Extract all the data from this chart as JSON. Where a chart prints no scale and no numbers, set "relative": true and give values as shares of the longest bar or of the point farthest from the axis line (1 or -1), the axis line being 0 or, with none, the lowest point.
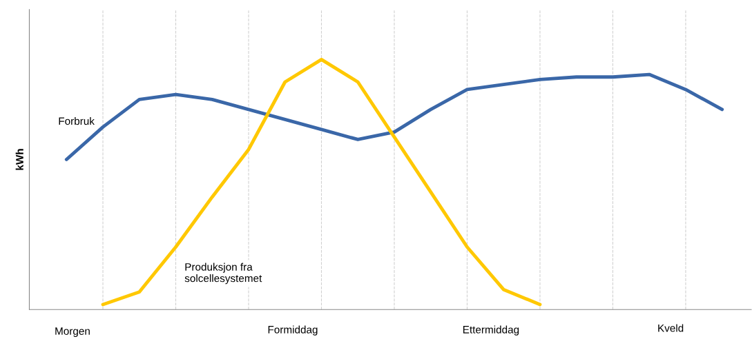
{
  "chart_data": {
    "type": "line",
    "relative": true,
    "ylabel": "kWh",
    "categories": [
      null,
      null,
      null,
      null,
      null,
      null,
      null,
      null,
      null,
      null,
      null,
      null,
      null,
      null,
      null,
      null,
      null,
      null,
      null
    ],
    "series": [
      {
        "name": "Forbruk",
        "color": "#3a67a8",
        "values": [
          0.6,
          0.73,
          0.84,
          0.86,
          0.84,
          0.8,
          0.76,
          0.72,
          0.68,
          0.71,
          0.8,
          0.88,
          0.9,
          0.92,
          0.93,
          0.93,
          0.94,
          0.88,
          0.8
        ]
      },
      {
        "name": "Produksjon fra\nsolcellesystemet",
        "color": "#ffc800",
        "values": [
          null,
          0.02,
          0.07,
          0.25,
          0.45,
          0.64,
          0.91,
          1.0,
          0.91,
          0.69,
          0.47,
          0.25,
          0.08,
          0.02,
          null,
          null,
          null,
          null,
          null
        ]
      }
    ],
    "annotations": [
      "Morgen",
      "Formiddag",
      "Ettermiddag",
      "Kveld"
    ],
    "grid": "x",
    "legend": false,
    "marker": "none",
    "line_style": "solid"
  }
}
